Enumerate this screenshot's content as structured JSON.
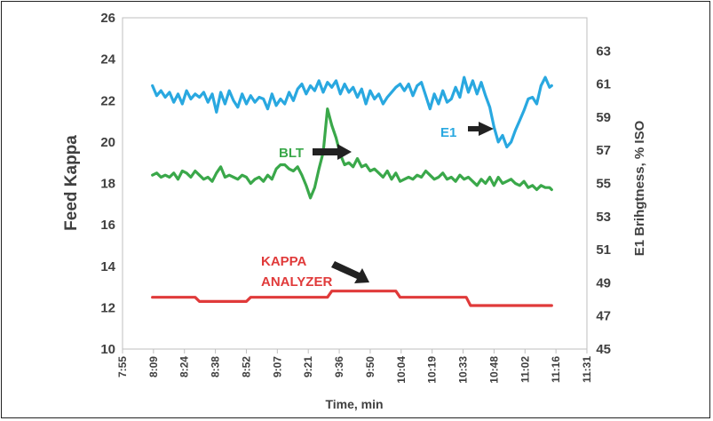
{
  "chart_data": {
    "type": "line",
    "xlabel": "Time, min",
    "ylabel": "Feed Kappa",
    "y2label": "E1 Brihgtness, % ISO",
    "x_ticks": [
      "7:55",
      "8:09",
      "8:24",
      "8:38",
      "8:52",
      "9:07",
      "9:21",
      "9:36",
      "9:50",
      "10:04",
      "10:19",
      "10:33",
      "10:48",
      "11:02",
      "11:16",
      "11:31"
    ],
    "ylim": [
      10,
      26
    ],
    "y_ticks": [
      10,
      12,
      14,
      16,
      18,
      20,
      22,
      24,
      26
    ],
    "y2lim": [
      45,
      65
    ],
    "y2_ticks": [
      45,
      47,
      49,
      51,
      53,
      55,
      57,
      59,
      61,
      63
    ],
    "grid": false,
    "x_unit": "minutes after 7:55",
    "series": [
      {
        "name": "E1",
        "axis": "right",
        "color": "#29a8e0",
        "x": [
          14,
          16,
          18,
          20,
          22,
          24,
          26,
          28,
          30,
          32,
          34,
          36,
          38,
          40,
          42,
          44,
          46,
          48,
          50,
          52,
          54,
          56,
          58,
          60,
          62,
          64,
          66,
          68,
          70,
          72,
          74,
          76,
          78,
          80,
          82,
          84,
          86,
          88,
          90,
          92,
          94,
          96,
          98,
          100,
          102,
          104,
          106,
          108,
          110,
          112,
          114,
          116,
          118,
          120,
          122,
          124,
          126,
          128,
          130,
          132,
          134,
          136,
          138,
          140,
          142,
          144,
          146,
          148,
          150,
          152,
          154,
          156,
          158,
          160,
          162,
          164,
          166,
          168,
          170,
          172,
          174,
          176,
          178,
          180,
          182,
          184,
          186,
          188,
          190,
          192,
          194,
          196,
          198,
          200,
          201
        ],
        "values": [
          60.9,
          60.3,
          60.6,
          60.2,
          60.5,
          59.9,
          60.4,
          59.8,
          60.6,
          60.1,
          60.4,
          60.2,
          60.5,
          59.9,
          60.4,
          59.3,
          60.5,
          59.8,
          60.6,
          60.0,
          59.6,
          60.4,
          59.8,
          60.3,
          59.9,
          60.2,
          60.1,
          59.5,
          60.4,
          59.7,
          60.1,
          59.8,
          60.5,
          60.0,
          60.7,
          61.0,
          60.4,
          60.9,
          60.6,
          61.2,
          60.5,
          61.1,
          60.8,
          61.2,
          60.4,
          61.0,
          60.5,
          60.8,
          60.2,
          60.7,
          59.8,
          60.6,
          60.1,
          60.4,
          59.8,
          60.2,
          60.5,
          60.8,
          61.0,
          60.6,
          61.0,
          60.3,
          60.9,
          61.1,
          60.3,
          59.5,
          60.4,
          59.8,
          60.6,
          59.9,
          60.1,
          60.8,
          60.2,
          61.4,
          60.5,
          61.2,
          60.4,
          61.1,
          60.3,
          59.6,
          58.4,
          57.5,
          57.9,
          57.2,
          57.5,
          58.2,
          58.8,
          59.4,
          60.1,
          60.2,
          59.8,
          60.9,
          61.4,
          60.8,
          60.9
        ]
      },
      {
        "name": "BLT",
        "axis": "left",
        "color": "#3aa84a",
        "x": [
          14,
          16,
          18,
          20,
          22,
          24,
          26,
          28,
          30,
          32,
          34,
          36,
          38,
          40,
          42,
          44,
          46,
          48,
          50,
          52,
          54,
          56,
          58,
          60,
          62,
          64,
          66,
          68,
          70,
          72,
          74,
          76,
          78,
          80,
          82,
          84,
          86,
          88,
          90,
          92,
          94,
          96,
          98,
          100,
          102,
          104,
          106,
          108,
          110,
          112,
          114,
          116,
          118,
          120,
          122,
          124,
          126,
          128,
          130,
          132,
          134,
          136,
          138,
          140,
          142,
          144,
          146,
          148,
          150,
          152,
          154,
          156,
          158,
          160,
          162,
          164,
          166,
          168,
          170,
          172,
          174,
          176,
          178,
          180,
          182,
          184,
          186,
          188,
          190,
          192,
          194,
          196,
          198,
          200,
          201
        ],
        "values": [
          18.4,
          18.5,
          18.3,
          18.4,
          18.3,
          18.5,
          18.2,
          18.6,
          18.5,
          18.3,
          18.6,
          18.4,
          18.2,
          18.3,
          18.1,
          18.5,
          18.8,
          18.3,
          18.4,
          18.3,
          18.2,
          18.4,
          18.3,
          18.0,
          18.2,
          18.3,
          18.1,
          18.4,
          18.2,
          18.7,
          18.9,
          18.9,
          18.7,
          18.6,
          18.8,
          18.4,
          17.9,
          17.3,
          17.8,
          18.7,
          19.5,
          21.6,
          20.8,
          20.2,
          19.4,
          18.9,
          19.0,
          18.8,
          19.2,
          18.8,
          18.9,
          18.6,
          18.7,
          18.5,
          18.3,
          18.6,
          18.2,
          18.5,
          18.1,
          18.2,
          18.3,
          18.2,
          18.4,
          18.3,
          18.6,
          18.4,
          18.2,
          18.3,
          18.5,
          18.2,
          18.3,
          18.1,
          18.4,
          18.2,
          18.3,
          18.1,
          17.9,
          18.2,
          18.0,
          18.3,
          17.9,
          18.3,
          18.0,
          18.1,
          18.2,
          18.0,
          17.9,
          18.1,
          17.8,
          17.9,
          17.7,
          17.9,
          17.8,
          17.8,
          17.7
        ]
      },
      {
        "name": "KAPPA ANALYZER",
        "axis": "left",
        "color": "#e03a3a",
        "x": [
          14,
          34,
          36,
          58,
          60,
          96,
          98,
          128,
          130,
          161,
          163,
          193,
          195,
          201
        ],
        "values": [
          12.5,
          12.5,
          12.3,
          12.3,
          12.5,
          12.5,
          12.8,
          12.8,
          12.5,
          12.5,
          12.1,
          12.1,
          12.1,
          12.1
        ]
      }
    ],
    "annotations": [
      {
        "text": "E1",
        "color": "#29a8e0"
      },
      {
        "text": "BLT",
        "color": "#3aa84a"
      },
      {
        "text": "KAPPA",
        "color": "#e03a3a"
      },
      {
        "text": "ANALYZER",
        "color": "#e03a3a"
      }
    ]
  }
}
